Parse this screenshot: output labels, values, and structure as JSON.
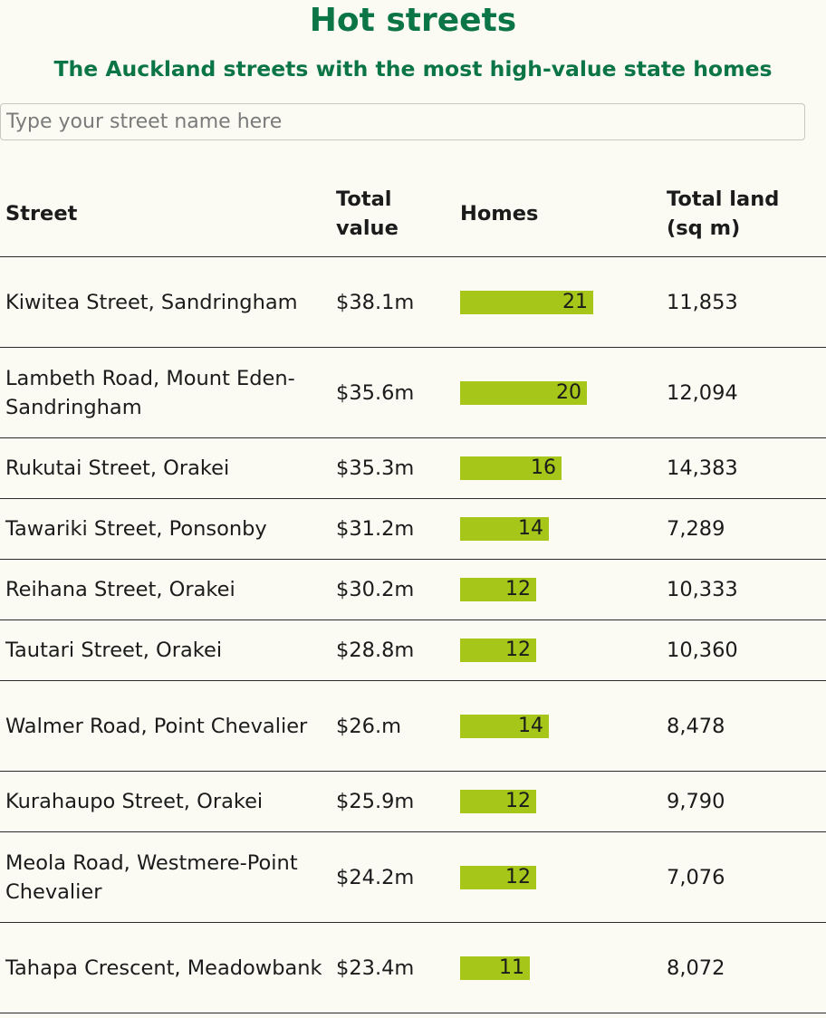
{
  "title": "Hot streets",
  "subtitle": "The Auckland streets with the most high-value state homes",
  "search": {
    "placeholder": "Type your street name here",
    "value": ""
  },
  "colors": {
    "heading": "#0b7546",
    "bar": "#a6c61a",
    "rule": "#2a2a2a",
    "background": "#fbfbf4"
  },
  "chart_data": {
    "type": "table",
    "columns": [
      "Street",
      "Total value",
      "Homes",
      "Total land (sq m)"
    ],
    "bar_column": "Homes",
    "rows": [
      {
        "street": "Kiwitea Street, Sandringham",
        "value": "$38.1m",
        "homes": 21,
        "land": "11,853"
      },
      {
        "street": "Lambeth Road, Mount Eden-Sandringham",
        "value": "$35.6m",
        "homes": 20,
        "land": "12,094"
      },
      {
        "street": "Rukutai Street, Orakei",
        "value": "$35.3m",
        "homes": 16,
        "land": "14,383"
      },
      {
        "street": "Tawariki Street, Ponsonby",
        "value": "$31.2m",
        "homes": 14,
        "land": "7,289"
      },
      {
        "street": "Reihana Street, Orakei",
        "value": "$30.2m",
        "homes": 12,
        "land": "10,333"
      },
      {
        "street": "Tautari Street, Orakei",
        "value": "$28.8m",
        "homes": 12,
        "land": "10,360"
      },
      {
        "street": "Walmer Road, Point Chevalier",
        "value": "$26.m",
        "homes": 14,
        "land": "8,478"
      },
      {
        "street": "Kurahaupo Street, Orakei",
        "value": "$25.9m",
        "homes": 12,
        "land": "9,790"
      },
      {
        "street": "Meola Road, Westmere-Point Chevalier",
        "value": "$24.2m",
        "homes": 12,
        "land": "7,076"
      },
      {
        "street": "Tahapa Crescent, Meadowbank",
        "value": "$23.4m",
        "homes": 11,
        "land": "8,072"
      }
    ]
  }
}
